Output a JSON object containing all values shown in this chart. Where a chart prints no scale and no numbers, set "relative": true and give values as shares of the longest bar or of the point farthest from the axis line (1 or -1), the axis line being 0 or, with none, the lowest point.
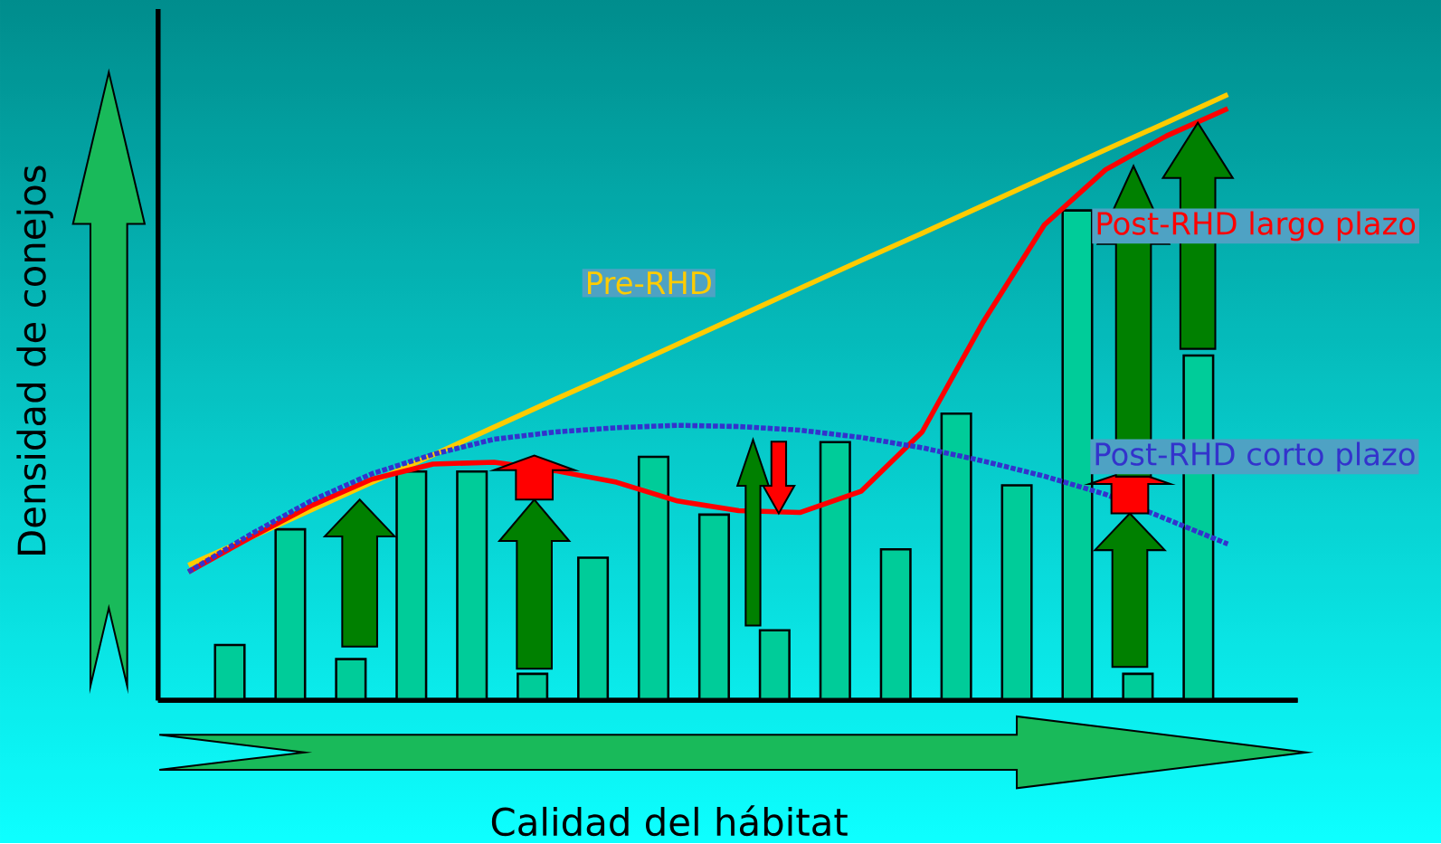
{
  "chart_data": [
    {
      "type": "bar",
      "relative": true,
      "xlabel": "Calidad del hábitat",
      "ylabel": "Densidad de conejos",
      "categories": [
        null,
        null,
        null,
        null,
        null,
        null,
        null,
        null,
        null,
        null,
        null,
        null,
        null,
        null,
        null,
        null,
        null
      ],
      "series": [
        {
          "color": "#00cc99",
          "values": [
            0.113,
            0.349,
            0.084,
            0.467,
            0.467,
            0.054,
            0.291,
            0.497,
            0.379,
            0.143,
            0.527,
            0.308,
            0.585,
            0.439,
            1.0,
            0.054,
            0.704
          ]
        }
      ]
    },
    {
      "type": "line",
      "relative": true,
      "categories": [
        null,
        null,
        null,
        null,
        null,
        null,
        null,
        null,
        null,
        null,
        null,
        null,
        null,
        null,
        null,
        null,
        null,
        null
      ],
      "series": [
        {
          "name": "Pre-RHD",
          "color": "#ffcc00",
          "line_style": "solid",
          "values": [
            0.223,
            0.268,
            0.314,
            0.36,
            0.405,
            0.451,
            0.497,
            0.542,
            0.588,
            0.634,
            0.68,
            0.726,
            0.771,
            0.817,
            0.863,
            0.909,
            0.954,
            1.0
          ]
        },
        {
          "name": "Post-RHD largo plazo",
          "color": "#ff0000",
          "line_style": "solid",
          "values": [
            0.212,
            0.268,
            0.321,
            0.365,
            0.39,
            0.393,
            0.379,
            0.36,
            0.329,
            0.313,
            0.31,
            0.345,
            0.443,
            0.625,
            0.785,
            0.876,
            0.932,
            0.977
          ]
        },
        {
          "name": "Post-RHD corto plazo",
          "color": "#3333cc",
          "line_style": "dotted",
          "values": [
            0.212,
            0.273,
            0.329,
            0.374,
            0.406,
            0.431,
            0.443,
            0.45,
            0.454,
            0.452,
            0.446,
            0.434,
            0.417,
            0.395,
            0.37,
            0.34,
            0.299,
            0.258
          ]
        }
      ]
    }
  ]
}
